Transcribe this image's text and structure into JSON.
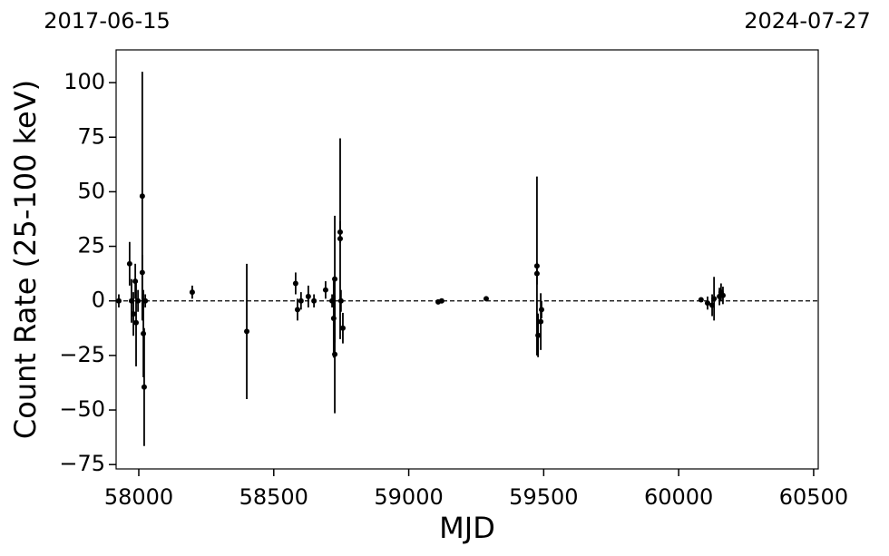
{
  "chart_data": {
    "type": "scatter",
    "x_label": "MJD",
    "y_label": "Count Rate (25-100 keV)",
    "top_labels": [
      "2017-06-15",
      "2024-07-27"
    ],
    "color": "#000000",
    "hline": 0,
    "xlim": [
      57916,
      60517
    ],
    "ylim": [
      -77,
      115
    ],
    "xticks": [
      58000,
      58500,
      59000,
      59500,
      60000,
      60500
    ],
    "yticks": [
      {
        "value": -75,
        "label": "−75"
      },
      {
        "value": -50,
        "label": "−50"
      },
      {
        "value": -25,
        "label": "−25"
      },
      0,
      25,
      50,
      75,
      100
    ],
    "x": [
      57926,
      57966,
      57973,
      57980,
      57987,
      57990,
      57997,
      58013,
      58013,
      58017,
      58020,
      58024,
      58198,
      58400,
      58581,
      58588,
      58601,
      58628,
      58649,
      58692,
      58716,
      58722,
      58726,
      58726,
      58746,
      58746,
      58749,
      58756,
      59109,
      59122,
      59287,
      59475,
      59475,
      59479,
      59489,
      59492,
      60083,
      60107,
      60124,
      60131,
      60151,
      60157,
      60164
    ],
    "values": [
      0,
      17,
      0,
      -6,
      9,
      -10,
      0,
      48,
      13,
      -15,
      -39.5,
      0,
      4,
      -14,
      8,
      -4,
      0,
      2,
      0,
      5,
      0,
      -8,
      10,
      -24.5,
      28.5,
      31.5,
      0,
      -12.5,
      -0.5,
      0,
      1,
      16,
      12.5,
      -15.8,
      -9.5,
      -4,
      0.5,
      -1,
      -2,
      1,
      2,
      4,
      2.5
    ],
    "errors": [
      3,
      10,
      10,
      10,
      8,
      20,
      5,
      57,
      8,
      20,
      27,
      3,
      3,
      31,
      5,
      5,
      4,
      5,
      3,
      4,
      3,
      18,
      29,
      27,
      46,
      5,
      5,
      7,
      1,
      1,
      1,
      41,
      5,
      10,
      13,
      4,
      1,
      3,
      5,
      10,
      4,
      4,
      4
    ]
  }
}
